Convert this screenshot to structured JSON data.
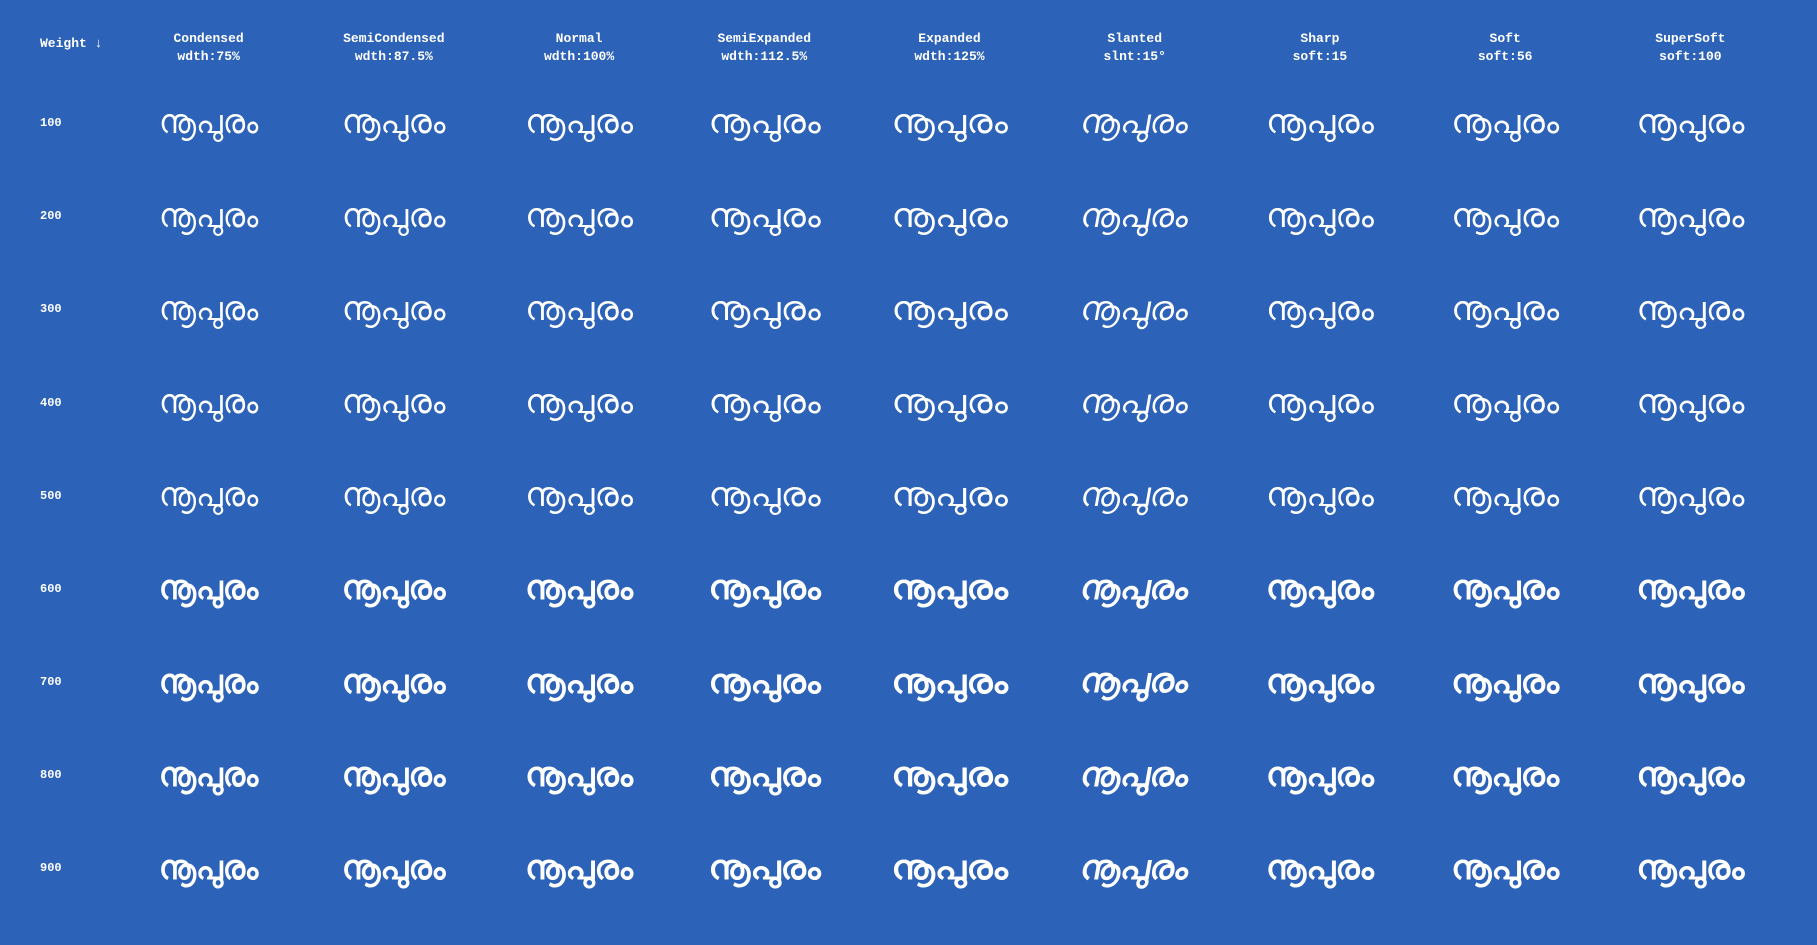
{
  "corner_label": "Weight ↓",
  "sample_text": "നൂപുരം",
  "background_color": "#2c62b8",
  "text_color": "#ffffff",
  "header_fontsize": 13,
  "row_header_fontsize": 12,
  "cell_fontsize": 34,
  "columns": [
    {
      "title": "Condensed",
      "sub": "wdth:75%",
      "class": "w75"
    },
    {
      "title": "SemiCondensed",
      "sub": "wdth:87.5%",
      "class": "w87"
    },
    {
      "title": "Normal",
      "sub": "wdth:100%",
      "class": "w100"
    },
    {
      "title": "SemiExpanded",
      "sub": "wdth:112.5%",
      "class": "w112"
    },
    {
      "title": "Expanded",
      "sub": "wdth:125%",
      "class": "w125"
    },
    {
      "title": "Slanted",
      "sub": "slnt:15°",
      "class": "slnt"
    },
    {
      "title": "Sharp",
      "sub": "soft:15",
      "class": "w100"
    },
    {
      "title": "Soft",
      "sub": "soft:56",
      "class": "w100"
    },
    {
      "title": "SuperSoft",
      "sub": "soft:100",
      "class": "w100"
    }
  ],
  "weights": [
    100,
    200,
    300,
    400,
    500,
    600,
    700,
    800,
    900
  ]
}
